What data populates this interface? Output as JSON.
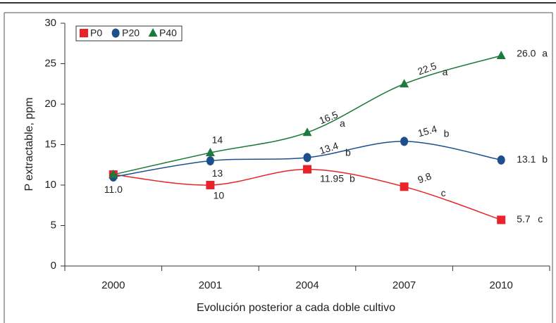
{
  "chart_data": {
    "type": "line",
    "xlabel": "Evolución posterior a cada doble cultivo",
    "ylabel": "P extractable, ppm",
    "categories": [
      "2000",
      "2001",
      "2004",
      "2007",
      "2010"
    ],
    "ylim": [
      0,
      30
    ],
    "yticks": [
      0,
      5,
      10,
      15,
      20,
      25,
      30
    ],
    "legend": "upper left",
    "series": [
      {
        "name": "P0",
        "color": "#e8232a",
        "marker": "square",
        "values": [
          11.3,
          10,
          11.95,
          9.8,
          5.7
        ],
        "value_labels": [
          null,
          "10",
          "11.95",
          "9.8",
          "5.7"
        ],
        "letters": [
          null,
          null,
          "b",
          "c",
          "c"
        ]
      },
      {
        "name": "P20",
        "color": "#1d4f8c",
        "marker": "circle",
        "values": [
          11.0,
          13,
          13.4,
          15.4,
          13.1
        ],
        "value_labels": [
          "11.0",
          "13",
          "13.4",
          "15.4",
          "13.1"
        ],
        "letters": [
          null,
          null,
          "b",
          "b",
          "b"
        ]
      },
      {
        "name": "P40",
        "color": "#1e7a3c",
        "marker": "triangle",
        "values": [
          11.3,
          14,
          16.5,
          22.5,
          26.0
        ],
        "value_labels": [
          null,
          "14",
          "16.5",
          "22.5",
          "26.0"
        ],
        "letters": [
          null,
          null,
          "a",
          "a",
          "a"
        ]
      }
    ]
  }
}
